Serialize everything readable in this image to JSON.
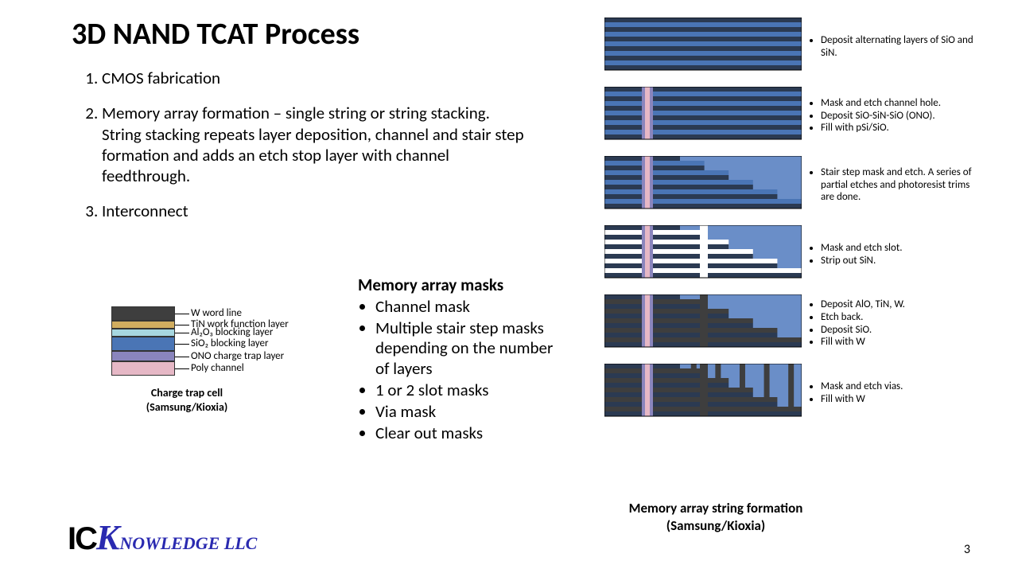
{
  "title": "3D NAND TCAT Process",
  "steps": [
    "CMOS fabrication",
    "Memory array formation – single string or string stacking. String stacking repeats layer deposition, channel and stair step formation and adds an etch stop layer with channel feedthrough.",
    "Interconnect"
  ],
  "cell": {
    "caption_line1": "Charge trap cell",
    "caption_line2": "(Samsung/Kioxia)",
    "layers": [
      {
        "label": "W word line",
        "color": "#3e3e3e",
        "h": 18
      },
      {
        "label": "TiN work function layer",
        "color": "#d1ad5f",
        "h": 10
      },
      {
        "label": "Al₂O₃ blocking layer",
        "color": "#a7d7e0",
        "h": 10
      },
      {
        "label": "SiO₂ blocking layer",
        "color": "#4a75b5",
        "h": 18
      },
      {
        "label": "ONO charge trap layer",
        "color": "#8a85bd",
        "h": 13
      },
      {
        "label": "Poly channel",
        "color": "#e6b8c6",
        "h": 18
      }
    ]
  },
  "masks": {
    "title": "Memory array masks",
    "items": [
      "Channel mask",
      "Multiple stair step masks depending on the number of layers",
      "1 or 2 slot masks",
      "Via mask",
      "Clear out masks"
    ]
  },
  "flow": {
    "caption_line1": "Memory array string formation",
    "caption_line2": "(Samsung/Kioxia)",
    "colors": {
      "sio": "#2b3a52",
      "sin": "#4a75b5",
      "ono": "#8a85bd",
      "poly": "#e6b8c6",
      "w": "#3e3e3e",
      "fill": "#6a8ec8",
      "border": "#000000",
      "bg": "#6a8ec8"
    },
    "steps": [
      {
        "bullets": [
          "Deposit alternating layers of SiO and SiN."
        ]
      },
      {
        "bullets": [
          "Mask and etch channel hole.",
          "Deposit SiO-SiN-SiO (ONO).",
          "Fill with pSi/SiO."
        ]
      },
      {
        "bullets": [
          "Stair step mask and etch. A series of partial etches and photoresist trims are done."
        ]
      },
      {
        "bullets": [
          "Mask and etch slot.",
          "Strip out SiN."
        ]
      },
      {
        "bullets": [
          "Deposit AlO, TiN, W.",
          "Etch back.",
          "Deposit SiO.",
          "Fill with W"
        ]
      },
      {
        "bullets": [
          "Mask and etch vias.",
          "Fill with W"
        ]
      }
    ]
  },
  "logo": {
    "ic": "IC",
    "k": "K",
    "rest": "NOWLEDGE LLC"
  },
  "page": "3"
}
